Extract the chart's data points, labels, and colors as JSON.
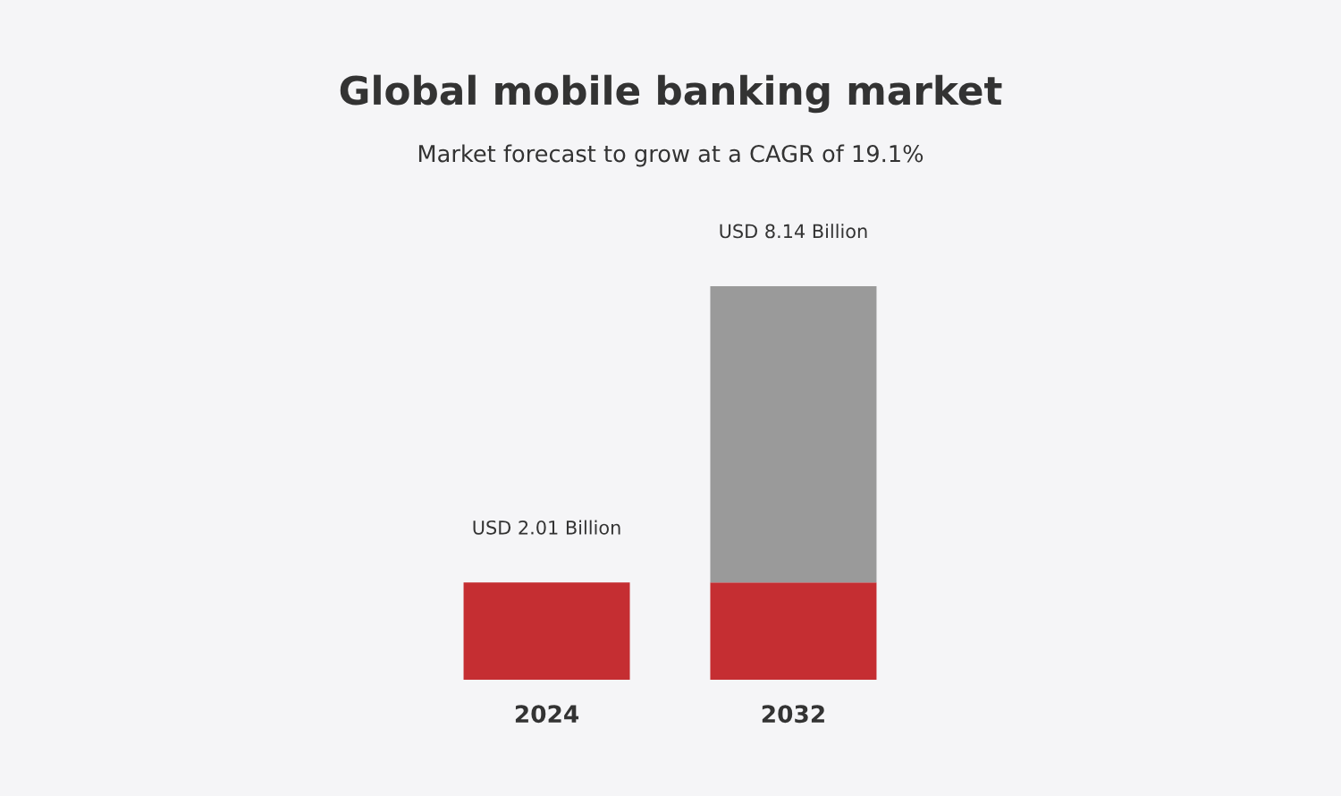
{
  "chart_data": {
    "type": "bar",
    "title": "Global mobile banking market",
    "subtitle": "Market forecast to grow at a CAGR of 19.1%",
    "categories": [
      "2024",
      "2032"
    ],
    "series": [
      {
        "color": "#c52e32",
        "values": [
          2.01,
          2.01
        ],
        "value_labels": [
          "USD 2.01 Billion",
          null
        ]
      },
      {
        "color": "#9a9a9a",
        "values": [
          null,
          6.13
        ]
      }
    ],
    "stacked": true,
    "totals": [
      null,
      "USD 8.14 Billion"
    ],
    "tick_labels": "x"
  }
}
